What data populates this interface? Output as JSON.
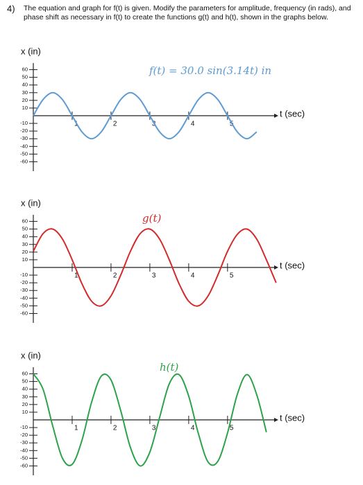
{
  "header": {
    "number": "4)",
    "text": "The equation and graph for f(t) is given. Modify the parameters for amplitude, frequency (in rads), and phase shift as necessary in f(t) to create the functions g(t) and h(t), shown in the graphs below."
  },
  "chart_data": [
    {
      "type": "line",
      "title": "f(t) = 30.0 sin(3.14t) in",
      "y_label": "x (in)",
      "x_label": "t (sec)",
      "x": [
        0,
        0.25,
        0.5,
        0.75,
        1,
        1.25,
        1.5,
        1.75,
        2,
        2.25,
        2.5,
        2.75,
        3,
        3.25,
        3.5,
        3.75,
        4,
        4.25,
        4.5,
        4.75,
        5,
        5.25,
        5.5,
        5.75
      ],
      "series": [
        {
          "name": "f(t)",
          "color": "#5b9bd5",
          "values": [
            0,
            21,
            30,
            21,
            0,
            -21,
            -30,
            -21,
            0,
            21,
            30,
            21,
            0,
            -21,
            -30,
            -21,
            0,
            21,
            30,
            21,
            0,
            -21,
            -30,
            -21
          ]
        }
      ],
      "xlim": [
        0,
        6.2
      ],
      "ylim": [
        -65,
        65
      ],
      "xticks": [
        1,
        2,
        3,
        4,
        5
      ],
      "yticks": [
        60,
        50,
        40,
        30,
        20,
        10,
        -10,
        -20,
        -30,
        -40,
        -50,
        -60
      ]
    },
    {
      "type": "line",
      "title": "g(t)",
      "y_label": "x (in)",
      "x_label": "t (sec)",
      "x": [
        0,
        0.25,
        0.5,
        0.75,
        1,
        1.25,
        1.5,
        1.75,
        2,
        2.25,
        2.5,
        2.75,
        3,
        3.25,
        3.5,
        3.75,
        4,
        4.25,
        4.5,
        4.75,
        5,
        5.25,
        5.5,
        5.75,
        6,
        6.25
      ],
      "series": [
        {
          "name": "g(t)",
          "color": "#d42a2a",
          "values": [
            21,
            44,
            50,
            37,
            10,
            -21,
            -44,
            -50,
            -37,
            -10,
            21,
            44,
            50,
            37,
            10,
            -21,
            -44,
            -50,
            -37,
            -10,
            21,
            43,
            50,
            37,
            10,
            -20
          ]
        }
      ],
      "xlim": [
        0,
        6.2
      ],
      "ylim": [
        -65,
        65
      ],
      "xticks": [
        1,
        2,
        3,
        4,
        5
      ],
      "yticks": [
        60,
        50,
        40,
        30,
        20,
        10,
        -10,
        -20,
        -30,
        -40,
        -50,
        -60
      ]
    },
    {
      "type": "line",
      "title": "h(t)",
      "y_label": "x (in)",
      "x_label": "t (sec)",
      "x": [
        0,
        0.25,
        0.5,
        0.75,
        1,
        1.25,
        1.5,
        1.75,
        2,
        2.25,
        2.5,
        2.75,
        3,
        3.25,
        3.5,
        3.75,
        4,
        4.25,
        4.5,
        4.75,
        5,
        5.25,
        5.5,
        5.75,
        6
      ],
      "series": [
        {
          "name": "h(t)",
          "color": "#2ca24a",
          "values": [
            60,
            40,
            -8,
            -50,
            -58,
            -27,
            23,
            57,
            52,
            12,
            -36,
            -60,
            -42,
            3,
            47,
            59,
            31,
            -18,
            -55,
            -54,
            -17,
            33,
            59,
            33,
            -16
          ]
        }
      ],
      "xlim": [
        0,
        6.2
      ],
      "ylim": [
        -65,
        65
      ],
      "xticks": [
        1,
        2,
        3,
        4,
        5
      ],
      "yticks": [
        60,
        50,
        40,
        30,
        20,
        10,
        -10,
        -20,
        -30,
        -40,
        -50,
        -60
      ]
    }
  ]
}
